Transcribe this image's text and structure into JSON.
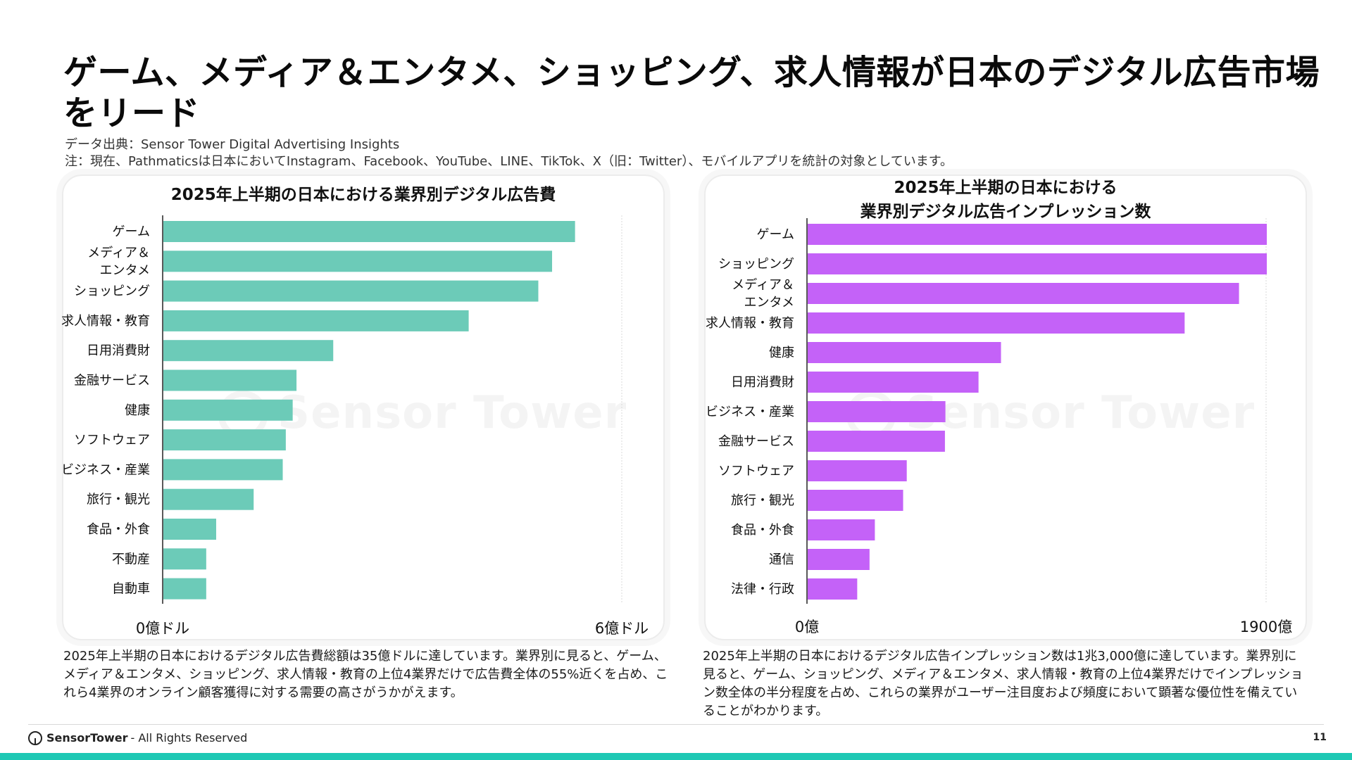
{
  "page": {
    "title": "ゲーム、メディア＆エンタメ、ショッピング、求人情報が日本のデジタル広告市場をリード",
    "source_line": "データ出典：Sensor Tower Digital Advertising Insights",
    "note_line": "注：現在、Pathmaticsは日本においてInstagram、Facebook、YouTube、LINE、TikTok、X（旧：Twitter）、モバイルアプリを統計の対象としています。"
  },
  "watermark": {
    "text": "Sensor Tower"
  },
  "chart_data": [
    {
      "type": "bar",
      "orientation": "horizontal",
      "title": "2025年上半期の日本における業界別デジタル広告費",
      "categories": [
        "ゲーム",
        "メディア＆\nエンタメ",
        "ショッピング",
        "求人情報・教育",
        "日用消費財",
        "金融サービス",
        "健康",
        "ソフトウェア",
        "ビジネス・産業",
        "旅行・観光",
        "食品・外食",
        "不動産",
        "自動車"
      ],
      "values": [
        5.38,
        5.08,
        4.9,
        3.99,
        2.22,
        1.74,
        1.69,
        1.6,
        1.56,
        1.18,
        0.69,
        0.56,
        0.56
      ],
      "xlim": [
        0,
        6
      ],
      "x_min_label": "0億ドル",
      "x_max_label": "6億ドル",
      "color": "#6ccbb8",
      "grid": "vertical line at max"
    },
    {
      "type": "bar",
      "orientation": "horizontal",
      "title": "2025年上半期の日本における\n業界別デジタル広告インプレッション数",
      "categories": [
        "ゲーム",
        "ショッピング",
        "メディア＆\nエンタメ",
        "求人情報・教育",
        "健康",
        "日用消費財",
        "ビジネス・産業",
        "金融サービス",
        "ソフトウェア",
        "旅行・観光",
        "食品・外食",
        "通信",
        "法律・行政"
      ],
      "values": [
        1900,
        1900,
        1785,
        1560,
        800,
        707,
        570,
        568,
        410,
        395,
        278,
        256,
        205
      ],
      "xlim": [
        0,
        1900
      ],
      "x_min_label": "0億",
      "x_max_label": "1900億",
      "color": "#c462f8",
      "grid": "vertical line at max"
    }
  ],
  "descriptions": {
    "left": "2025年上半期の日本におけるデジタル広告費総額は35億ドルに達しています。業界別に見ると、ゲーム、メディア＆エンタメ、ショッピング、求人情報・教育の上位4業界だけで広告費全体の55%近くを占め、これら4業界のオンライン顧客獲得に対する需要の高さがうかがえます。",
    "right": "2025年上半期の日本におけるデジタル広告インプレッション数は1兆3,000億に達しています。業界別に見ると、ゲーム、ショッピング、メディア＆エンタメ、求人情報・教育の上位4業界だけでインプレッション数全体の半分程度を占め、これらの業界がユーザー注目度および頻度において顕著な優位性を備えていることがわかります。"
  },
  "footer": {
    "brand": "SensorTower",
    "rights": "- All Rights Reserved",
    "page_number": "11",
    "bar_color": "#1ec8b4"
  }
}
